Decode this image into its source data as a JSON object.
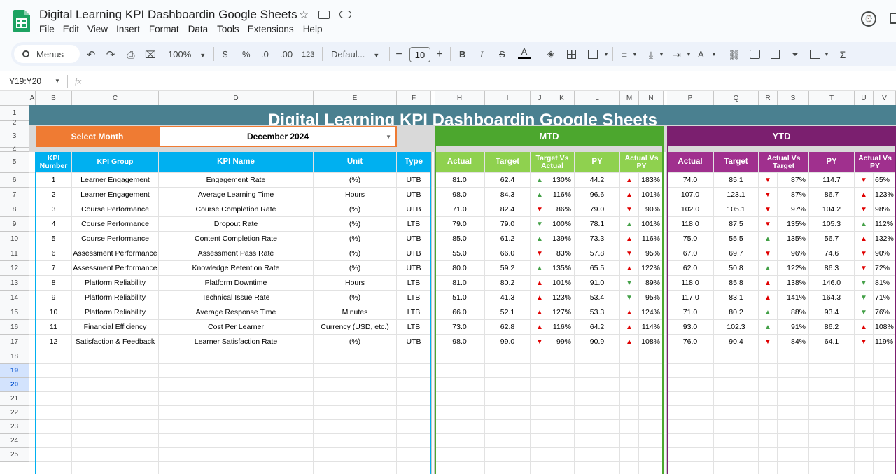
{
  "app": {
    "title": "Digital Learning KPI Dashboardin Google Sheets",
    "menu": [
      "File",
      "Edit",
      "View",
      "Insert",
      "Format",
      "Data",
      "Tools",
      "Extensions",
      "Help"
    ]
  },
  "toolbar": {
    "search": "Menus",
    "zoom": "100%",
    "currency": "$",
    "percent": "%",
    "dec_dec": ".0",
    "inc_dec": ".00",
    "num_fmt": "123",
    "font": "Defaul...",
    "font_size": "10",
    "bold": "B",
    "italic": "I",
    "strike": "S",
    "text_color": "A"
  },
  "formula": {
    "name_box": "Y19:Y20",
    "fx": "fx"
  },
  "columns": [
    "A",
    "B",
    "C",
    "D",
    "E",
    "F",
    "H",
    "I",
    "J",
    "K",
    "L",
    "M",
    "N",
    "P",
    "Q",
    "R",
    "S",
    "T",
    "U",
    "V"
  ],
  "rows": [
    "1",
    "2",
    "3",
    "4",
    "5",
    "6",
    "7",
    "8",
    "9",
    "10",
    "11",
    "12",
    "13",
    "14",
    "15",
    "16",
    "17",
    "18",
    "19",
    "20",
    "21",
    "22",
    "23",
    "24",
    "25"
  ],
  "dashboard": {
    "title": "Digital Learning KPI Dashboardin Google Sheets",
    "select_month_label": "Select Month",
    "selected_month": "December 2024",
    "mtd_label": "MTD",
    "ytd_label": "YTD",
    "headers": {
      "kpi_number": "KPI Number",
      "kpi_group": "KPI Group",
      "kpi_name": "KPI Name",
      "unit": "Unit",
      "type": "Type",
      "actual": "Actual",
      "target": "Target",
      "target_vs_actual": "Target Vs Actual",
      "py": "PY",
      "actual_vs_py": "Actual Vs PY",
      "actual_vs_target": "Actual Vs Target"
    },
    "colors": {
      "title_bg": "#4a8090",
      "select_bg": "#ef7b33",
      "kpi_header_bg": "#00b0f0",
      "mtd_bg": "#4ca72e",
      "mtd_sub": "#8fd14f",
      "ytd_bg": "#7b1f6f",
      "ytd_sub": "#a0308e",
      "up_green": "#43a047",
      "red": "#e00000"
    },
    "kpis": [
      {
        "no": "1",
        "group": "Learner Engagement",
        "name": "Engagement Rate",
        "unit": "(%)",
        "type": "UTB",
        "mtd": {
          "actual": "81.0",
          "target": "62.4",
          "tva_icon": "up-green",
          "tva": "130%",
          "py": "44.2",
          "avp_icon": "up-red",
          "avp": "183%"
        },
        "ytd": {
          "actual": "74.0",
          "target": "85.1",
          "avt_icon": "down-red",
          "avt": "87%",
          "py": "114.7",
          "avp_icon": "down-red",
          "avp": "65%"
        }
      },
      {
        "no": "2",
        "group": "Learner Engagement",
        "name": "Average Learning Time",
        "unit": "Hours",
        "type": "UTB",
        "mtd": {
          "actual": "98.0",
          "target": "84.3",
          "tva_icon": "up-green",
          "tva": "116%",
          "py": "96.6",
          "avp_icon": "up-red",
          "avp": "101%"
        },
        "ytd": {
          "actual": "107.0",
          "target": "123.1",
          "avt_icon": "down-red",
          "avt": "87%",
          "py": "86.7",
          "avp_icon": "up-red",
          "avp": "123%"
        }
      },
      {
        "no": "3",
        "group": "Course Performance",
        "name": "Course Completion Rate",
        "unit": "(%)",
        "type": "UTB",
        "mtd": {
          "actual": "71.0",
          "target": "82.4",
          "tva_icon": "down-red",
          "tva": "86%",
          "py": "79.0",
          "avp_icon": "down-red",
          "avp": "90%"
        },
        "ytd": {
          "actual": "102.0",
          "target": "105.1",
          "avt_icon": "down-red",
          "avt": "97%",
          "py": "104.2",
          "avp_icon": "down-red",
          "avp": "98%"
        }
      },
      {
        "no": "4",
        "group": "Course Performance",
        "name": "Dropout Rate",
        "unit": "(%)",
        "type": "LTB",
        "mtd": {
          "actual": "79.0",
          "target": "79.0",
          "tva_icon": "down-green",
          "tva": "100%",
          "py": "78.1",
          "avp_icon": "up-green",
          "avp": "101%"
        },
        "ytd": {
          "actual": "118.0",
          "target": "87.5",
          "avt_icon": "down-red",
          "avt": "135%",
          "py": "105.3",
          "avp_icon": "up-green",
          "avp": "112%"
        }
      },
      {
        "no": "5",
        "group": "Course Performance",
        "name": "Content Completion Rate",
        "unit": "(%)",
        "type": "UTB",
        "mtd": {
          "actual": "85.0",
          "target": "61.2",
          "tva_icon": "up-green",
          "tva": "139%",
          "py": "73.3",
          "avp_icon": "up-red",
          "avp": "116%"
        },
        "ytd": {
          "actual": "75.0",
          "target": "55.5",
          "avt_icon": "up-green",
          "avt": "135%",
          "py": "56.7",
          "avp_icon": "up-red",
          "avp": "132%"
        }
      },
      {
        "no": "6",
        "group": "Assessment Performance",
        "name": "Assessment Pass Rate",
        "unit": "(%)",
        "type": "UTB",
        "mtd": {
          "actual": "55.0",
          "target": "66.0",
          "tva_icon": "down-red",
          "tva": "83%",
          "py": "57.8",
          "avp_icon": "down-red",
          "avp": "95%"
        },
        "ytd": {
          "actual": "67.0",
          "target": "69.7",
          "avt_icon": "down-red",
          "avt": "96%",
          "py": "74.6",
          "avp_icon": "down-red",
          "avp": "90%"
        }
      },
      {
        "no": "7",
        "group": "Assessment Performance",
        "name": "Knowledge Retention Rate",
        "unit": "(%)",
        "type": "UTB",
        "mtd": {
          "actual": "80.0",
          "target": "59.2",
          "tva_icon": "up-green",
          "tva": "135%",
          "py": "65.5",
          "avp_icon": "up-red",
          "avp": "122%"
        },
        "ytd": {
          "actual": "62.0",
          "target": "50.8",
          "avt_icon": "up-green",
          "avt": "122%",
          "py": "86.3",
          "avp_icon": "down-red",
          "avp": "72%"
        }
      },
      {
        "no": "8",
        "group": "Platform Reliability",
        "name": "Platform Downtime",
        "unit": "Hours",
        "type": "LTB",
        "mtd": {
          "actual": "81.0",
          "target": "80.2",
          "tva_icon": "up-red",
          "tva": "101%",
          "py": "91.0",
          "avp_icon": "down-green",
          "avp": "89%"
        },
        "ytd": {
          "actual": "118.0",
          "target": "85.8",
          "avt_icon": "up-red",
          "avt": "138%",
          "py": "146.0",
          "avp_icon": "down-green",
          "avp": "81%"
        }
      },
      {
        "no": "9",
        "group": "Platform Reliability",
        "name": "Technical Issue Rate",
        "unit": "(%)",
        "type": "LTB",
        "mtd": {
          "actual": "51.0",
          "target": "41.3",
          "tva_icon": "up-red",
          "tva": "123%",
          "py": "53.4",
          "avp_icon": "down-green",
          "avp": "95%"
        },
        "ytd": {
          "actual": "117.0",
          "target": "83.1",
          "avt_icon": "up-red",
          "avt": "141%",
          "py": "164.3",
          "avp_icon": "down-green",
          "avp": "71%"
        }
      },
      {
        "no": "10",
        "group": "Platform Reliability",
        "name": "Average Response Time",
        "unit": "Minutes",
        "type": "LTB",
        "mtd": {
          "actual": "66.0",
          "target": "52.1",
          "tva_icon": "up-red",
          "tva": "127%",
          "py": "53.3",
          "avp_icon": "up-red",
          "avp": "124%"
        },
        "ytd": {
          "actual": "71.0",
          "target": "80.2",
          "avt_icon": "up-green",
          "avt": "88%",
          "py": "93.4",
          "avp_icon": "down-green",
          "avp": "76%"
        }
      },
      {
        "no": "11",
        "group": "Financial Efficiency",
        "name": "Cost Per Learner",
        "unit": "Currency (USD, etc.)",
        "type": "LTB",
        "mtd": {
          "actual": "73.0",
          "target": "62.8",
          "tva_icon": "up-red",
          "tva": "116%",
          "py": "64.2",
          "avp_icon": "up-red",
          "avp": "114%"
        },
        "ytd": {
          "actual": "93.0",
          "target": "102.3",
          "avt_icon": "up-green",
          "avt": "91%",
          "py": "86.2",
          "avp_icon": "up-red",
          "avp": "108%"
        }
      },
      {
        "no": "12",
        "group": "Satisfaction & Feedback",
        "name": "Learner Satisfaction Rate",
        "unit": "(%)",
        "type": "UTB",
        "mtd": {
          "actual": "98.0",
          "target": "99.0",
          "tva_icon": "down-red",
          "tva": "99%",
          "py": "90.9",
          "avp_icon": "up-red",
          "avp": "108%"
        },
        "ytd": {
          "actual": "76.0",
          "target": "90.4",
          "avt_icon": "down-red",
          "avt": "84%",
          "py": "64.1",
          "avp_icon": "down-red",
          "avp": "119%"
        }
      }
    ]
  }
}
